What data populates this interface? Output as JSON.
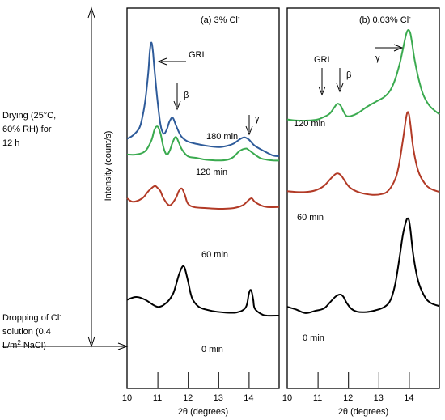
{
  "side_annotations": {
    "drying": [
      "Drying (25°C,",
      "60% RH) for",
      "12 h"
    ],
    "dropping": [
      "Dropping of Cl",
      "solution (0.4",
      "L/m",
      " NaCl)"
    ],
    "dropping_sup_minus": "-",
    "dropping_sup_2": "2"
  },
  "colors": {
    "180 min": "#2e5b9a",
    "120 min": "#3aaa4f",
    "60 min": "#b23a26",
    "0 min": "#000000"
  },
  "chart_data": [
    {
      "type": "line",
      "title": "(a) 3% Cl",
      "title_sup": "-",
      "xlabel": "2θ (degrees)",
      "ylabel": "Intensity (count/s)",
      "xlim": [
        10,
        15
      ],
      "xticks": [
        10,
        11,
        12,
        13,
        14
      ],
      "grid": false,
      "annotations": [
        "GRI",
        "β",
        "γ"
      ],
      "series": [
        {
          "name": "180 min",
          "x": [
            10.0,
            10.2,
            10.4,
            10.5,
            10.6,
            10.7,
            10.75,
            10.8,
            10.85,
            10.9,
            11.0,
            11.1,
            11.2,
            11.3,
            11.4,
            11.5,
            11.6,
            11.7,
            11.8,
            12.0,
            12.3,
            12.6,
            13.0,
            13.3,
            13.5,
            13.7,
            13.85,
            14.0,
            14.2,
            14.5,
            14.8,
            15.0
          ],
          "y": [
            6.9,
            7.0,
            7.2,
            7.5,
            8.0,
            8.8,
            9.4,
            9.65,
            9.4,
            8.9,
            8.0,
            7.3,
            7.05,
            7.15,
            7.4,
            7.5,
            7.3,
            7.1,
            6.95,
            6.82,
            6.75,
            6.7,
            6.66,
            6.7,
            6.76,
            6.88,
            6.94,
            6.88,
            6.7,
            6.55,
            6.42,
            6.4
          ]
        },
        {
          "name": "120 min",
          "x": [
            10.0,
            10.3,
            10.6,
            10.8,
            10.9,
            11.0,
            11.1,
            11.2,
            11.3,
            11.4,
            11.5,
            11.6,
            11.7,
            11.8,
            12.0,
            12.3,
            12.6,
            13.0,
            13.3,
            13.5,
            13.7,
            13.9,
            14.0,
            14.2,
            14.4,
            14.6,
            14.8,
            15.0
          ],
          "y": [
            6.45,
            6.45,
            6.55,
            6.85,
            7.15,
            7.25,
            7.05,
            6.65,
            6.45,
            6.55,
            6.8,
            6.95,
            6.8,
            6.6,
            6.4,
            6.35,
            6.3,
            6.28,
            6.3,
            6.38,
            6.55,
            6.62,
            6.58,
            6.45,
            6.34,
            6.3,
            6.28,
            6.28
          ]
        },
        {
          "name": "60 min",
          "x": [
            10.0,
            10.2,
            10.5,
            10.7,
            10.9,
            11.0,
            11.1,
            11.2,
            11.4,
            11.6,
            11.7,
            11.8,
            11.9,
            12.0,
            12.2,
            12.6,
            13.0,
            13.5,
            13.8,
            14.0,
            14.1,
            14.2,
            14.4,
            14.6,
            15.0
          ],
          "y": [
            5.2,
            5.1,
            5.2,
            5.4,
            5.55,
            5.5,
            5.4,
            5.2,
            5.0,
            5.2,
            5.4,
            5.48,
            5.3,
            5.05,
            4.95,
            4.92,
            4.9,
            4.92,
            5.0,
            5.15,
            5.2,
            5.1,
            5.0,
            4.95,
            4.95
          ]
        },
        {
          "name": "0 min",
          "x": [
            10.0,
            10.3,
            10.6,
            11.0,
            11.3,
            11.5,
            11.6,
            11.7,
            11.8,
            11.85,
            11.9,
            12.0,
            12.1,
            12.2,
            12.4,
            12.8,
            13.2,
            13.6,
            13.9,
            14.0,
            14.05,
            14.1,
            14.15,
            14.2,
            14.4,
            14.6,
            15.0
          ],
          "y": [
            2.3,
            2.38,
            2.3,
            2.1,
            2.22,
            2.45,
            2.7,
            3.0,
            3.22,
            3.26,
            3.2,
            2.85,
            2.45,
            2.25,
            2.08,
            1.98,
            1.94,
            1.94,
            2.08,
            2.45,
            2.58,
            2.52,
            2.3,
            2.05,
            1.9,
            1.85,
            1.85
          ]
        }
      ]
    },
    {
      "type": "line",
      "title": "(b) 0.03% Cl",
      "title_sup": "-",
      "xlabel": "2θ (degrees)",
      "ylabel": "",
      "xlim": [
        10,
        15
      ],
      "xticks": [
        10,
        11,
        12,
        13,
        14
      ],
      "grid": false,
      "annotations": [
        "GRI",
        "β",
        "γ"
      ],
      "series": [
        {
          "name": "120 min",
          "x": [
            10.0,
            10.3,
            10.7,
            11.0,
            11.2,
            11.4,
            11.55,
            11.65,
            11.75,
            11.85,
            11.95,
            12.1,
            12.3,
            12.6,
            12.9,
            13.2,
            13.4,
            13.55,
            13.7,
            13.8,
            13.9,
            13.95,
            14.0,
            14.05,
            14.1,
            14.2,
            14.35,
            14.5,
            14.7,
            15.0
          ],
          "y": [
            7.45,
            7.42,
            7.42,
            7.45,
            7.52,
            7.62,
            7.8,
            7.9,
            7.85,
            7.68,
            7.55,
            7.55,
            7.62,
            7.8,
            7.95,
            8.1,
            8.3,
            8.6,
            9.05,
            9.45,
            9.85,
            9.98,
            10.0,
            9.9,
            9.65,
            9.1,
            8.5,
            8.1,
            7.82,
            7.6
          ]
        },
        {
          "name": "60 min",
          "x": [
            10.0,
            10.3,
            10.6,
            10.9,
            11.2,
            11.45,
            11.6,
            11.7,
            11.8,
            11.95,
            12.1,
            12.4,
            12.8,
            13.1,
            13.3,
            13.5,
            13.65,
            13.8,
            13.9,
            13.95,
            14.0,
            14.05,
            14.15,
            14.3,
            14.5,
            14.7,
            15.0
          ],
          "y": [
            5.4,
            5.38,
            5.38,
            5.42,
            5.55,
            5.78,
            5.9,
            5.9,
            5.82,
            5.62,
            5.48,
            5.36,
            5.3,
            5.32,
            5.4,
            5.65,
            6.05,
            6.85,
            7.45,
            7.65,
            7.6,
            7.3,
            6.6,
            6.0,
            5.65,
            5.48,
            5.38
          ]
        },
        {
          "name": "0 min",
          "x": [
            10.0,
            10.3,
            10.6,
            10.9,
            11.2,
            11.4,
            11.6,
            11.75,
            11.85,
            11.95,
            12.1,
            12.3,
            12.6,
            12.9,
            13.2,
            13.4,
            13.55,
            13.7,
            13.8,
            13.9,
            13.95,
            14.0,
            14.05,
            14.15,
            14.3,
            14.5,
            14.7,
            15.0
          ],
          "y": [
            2.1,
            2.02,
            1.92,
            1.98,
            2.05,
            2.22,
            2.4,
            2.45,
            2.38,
            2.22,
            2.05,
            1.96,
            1.95,
            2.0,
            2.1,
            2.3,
            2.75,
            3.55,
            4.15,
            4.52,
            4.62,
            4.58,
            4.3,
            3.55,
            2.85,
            2.42,
            2.22,
            2.12
          ]
        }
      ]
    }
  ]
}
